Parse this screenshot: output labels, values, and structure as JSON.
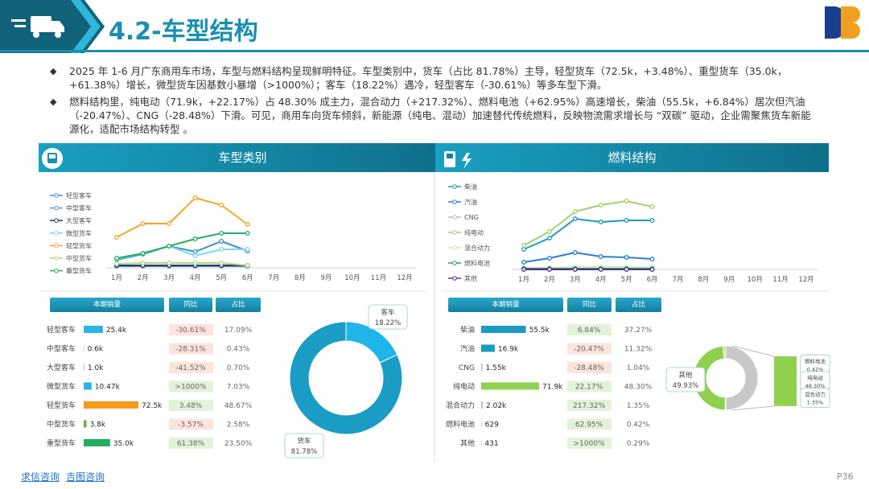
{
  "header": {
    "title": "4.2-车型结构",
    "links": [
      "求信咨询",
      "吉图咨询"
    ],
    "page": "P36"
  },
  "bullets": [
    "2025 年 1-6 月广东商用车市场，车型与燃料结构呈现鲜明特征。车型类别中，货车（占比 81.78%）主导，轻型货车（72.5k，+3.48%）、重型货车（35.0k，+61.38%）增长，微型货车因基数小暴增（>1000%）；客车（18.22%）遇冷，轻型客车（-30.61%）等多车型下滑。",
    "燃料结构里，纯电动（71.9k，+22.17%）占 48.30% 成主力，混合动力（+217.32%）、燃料电池（+62.95%）高速增长，柴油（55.5k，+6.84%）居次但汽油（-20.47%）、CNG（-28.48%）下滑。可见，商用车向货车倾斜，新能源（纯电、混动）加速替代传统燃料，反映物流需求增长与 “双碳” 驱动，企业需聚焦货车新能源化，适配市场结构转型 。"
  ],
  "panels": [
    {
      "title": "车型类别"
    },
    {
      "title": "燃料结构"
    }
  ],
  "tables": [
    {
      "columns": [
        "本期销量",
        "同比",
        "占比"
      ],
      "rows": [
        {
          "yoy": "-30.61%",
          "share": "17.09%"
        },
        {
          "yoy": "-28.31%",
          "share": "0.43%"
        },
        {
          "yoy": "-41.52%",
          "share": "0.70%"
        },
        {
          "yoy": ">1000%",
          "share": "7.03%"
        },
        {
          "yoy": "3.48%",
          "share": "48.67%"
        },
        {
          "yoy": "-3.57%",
          "share": "2.58%"
        },
        {
          "yoy": "61.38%",
          "share": "23.50%"
        }
      ]
    },
    {
      "columns": [
        "本期销量",
        "同比",
        "占比"
      ],
      "rows": [
        {
          "yoy": "6.84%",
          "share": "37.27%"
        },
        {
          "yoy": "-20.47%",
          "share": "11.32%"
        },
        {
          "yoy": "-28.48%",
          "share": "1.04%"
        },
        {
          "yoy": "22.17%",
          "share": "48.30%"
        },
        {
          "yoy": "217.32%",
          "share": "1.35%"
        },
        {
          "yoy": "62.95%",
          "share": "0.42%"
        },
        {
          "yoy": ">1000%",
          "share": "0.29%"
        }
      ]
    }
  ],
  "chart_data": [
    {
      "type": "line",
      "ylim": [
        0,
        100
      ],
      "categories": [
        "1月",
        "2月",
        "3月",
        "4月",
        "5月",
        "6月",
        "7月",
        "8月",
        "9月",
        "10月",
        "11月",
        "12月"
      ],
      "series": [
        {
          "name": "轻型客车",
          "color": "#3d8fd1",
          "values": [
            10,
            17,
            27,
            20,
            33,
            21,
            null,
            null,
            null,
            null,
            null,
            null
          ]
        },
        {
          "name": "中型客车",
          "color": "#6a8fc8",
          "values": [
            2,
            2,
            2,
            2,
            2,
            2,
            null,
            null,
            null,
            null,
            null,
            null
          ]
        },
        {
          "name": "大型客车",
          "color": "#1f3b70",
          "values": [
            3,
            3,
            3,
            3,
            3,
            3,
            null,
            null,
            null,
            null,
            null,
            null
          ]
        },
        {
          "name": "微型货车",
          "color": "#7fd6f2",
          "values": [
            11,
            18,
            27,
            15,
            23,
            23,
            null,
            null,
            null,
            null,
            null,
            null
          ]
        },
        {
          "name": "轻型货车",
          "color": "#f5a623",
          "values": [
            38,
            55,
            55,
            87,
            78,
            54,
            null,
            null,
            null,
            null,
            null,
            null
          ]
        },
        {
          "name": "中型货车",
          "color": "#a8db7a",
          "values": [
            5,
            6,
            6,
            6,
            6,
            3,
            null,
            null,
            null,
            null,
            null,
            null
          ]
        },
        {
          "name": "重型货车",
          "color": "#27ae60",
          "values": [
            12,
            18,
            27,
            36,
            43,
            43,
            null,
            null,
            null,
            null,
            null,
            null
          ]
        }
      ]
    },
    {
      "type": "line",
      "ylim": [
        0,
        100
      ],
      "categories": [
        "1月",
        "2月",
        "3月",
        "4月",
        "5月",
        "6月",
        "7月",
        "8月",
        "9月",
        "10月",
        "11月",
        "12月"
      ],
      "series": [
        {
          "name": "柴油",
          "color": "#1b9bb8",
          "values": [
            25,
            39,
            63,
            59,
            61,
            61,
            null,
            null,
            null,
            null,
            null,
            null
          ]
        },
        {
          "name": "汽油",
          "color": "#2a7fd4",
          "values": [
            9,
            14,
            21,
            16,
            15,
            13,
            null,
            null,
            null,
            null,
            null,
            null
          ]
        },
        {
          "name": "CNG",
          "color": "#bbbbbb",
          "values": [
            2,
            2,
            2,
            2,
            2,
            2,
            null,
            null,
            null,
            null,
            null,
            null
          ]
        },
        {
          "name": "纯电动",
          "color": "#9ed36a",
          "values": [
            30,
            47,
            72,
            80,
            85,
            78,
            null,
            null,
            null,
            null,
            null,
            null
          ]
        },
        {
          "name": "混合动力",
          "color": "#cfe7b8",
          "values": [
            2,
            2,
            3,
            3,
            3,
            3,
            null,
            null,
            null,
            null,
            null,
            null
          ]
        },
        {
          "name": "燃料电池",
          "color": "#2e9e5b",
          "values": [
            1,
            1,
            1,
            1,
            1,
            1,
            null,
            null,
            null,
            null,
            null,
            null
          ]
        },
        {
          "name": "其他",
          "color": "#5b2c8f",
          "values": [
            0,
            0,
            0,
            0,
            0,
            0,
            null,
            null,
            null,
            null,
            null,
            null
          ]
        }
      ]
    },
    {
      "type": "bar",
      "orientation": "horizontal",
      "categories": [
        "轻型客车",
        "中型客车",
        "大型客车",
        "微型货车",
        "轻型货车",
        "中型货车",
        "重型货车"
      ],
      "values": [
        25400,
        600,
        1000,
        10470,
        72500,
        3800,
        35000
      ],
      "value_labels": [
        "25.4k",
        "0.6k",
        "1.0k",
        "10.47k",
        "72.5k",
        "3.8k",
        "35.0k"
      ],
      "colors": [
        "#2ab4e8",
        "#bfbfbf",
        "#bfbfbf",
        "#2ab4e8",
        "#f59a1b",
        "#70ad47",
        "#1fae5a"
      ]
    },
    {
      "type": "bar",
      "orientation": "horizontal",
      "categories": [
        "柴油",
        "汽油",
        "CNG",
        "纯电动",
        "混合动力",
        "燃料电池",
        "其他"
      ],
      "values": [
        55500,
        16900,
        1550,
        71900,
        2020,
        629,
        431
      ],
      "value_labels": [
        "55.5k",
        "16.9k",
        "1.55k",
        "71.9k",
        "2.02k",
        "629",
        "431"
      ],
      "colors": [
        "#1b9bc2",
        "#1b9bc2",
        "#bfbfbf",
        "#8fd14f",
        "#bfbfbf",
        "#bfbfbf",
        "#bfbfbf"
      ]
    },
    {
      "type": "pie",
      "categories": [
        "客车",
        "货车"
      ],
      "values": [
        18.22,
        81.78
      ],
      "value_labels": [
        "18.22%",
        "81.78%"
      ],
      "colors": [
        "#1fb5e8",
        "#1a9cc4"
      ]
    },
    {
      "type": "bar_of_pie",
      "categories": [
        "其他",
        "燃料电池",
        "纯电动",
        "混合动力"
      ],
      "values": [
        49.93,
        0.42,
        48.3,
        1.35
      ],
      "value_labels": [
        "49.93%",
        "0.42%",
        "48.30%",
        "1.35%"
      ],
      "colors": [
        "#c8c8c8",
        "#5cb85c",
        "#8fd14f",
        "#b5df8f"
      ]
    }
  ]
}
